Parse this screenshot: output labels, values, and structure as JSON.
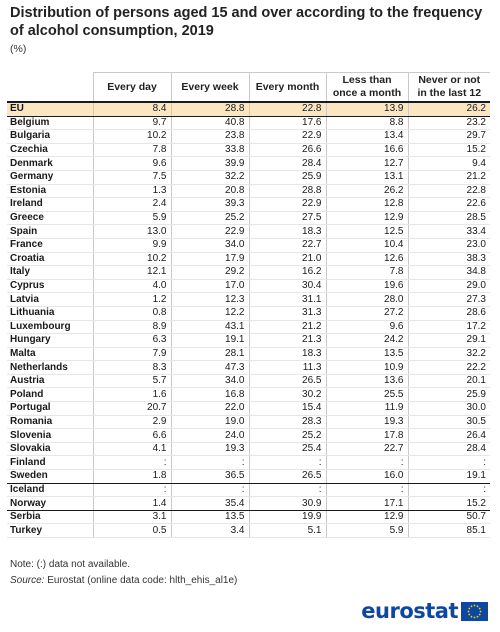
{
  "title": "Distribution of persons aged 15 and over according to the frequency of alcohol consumption, 2019",
  "unit": "(%)",
  "columns": [
    "Every day",
    "Every week",
    "Every month",
    "Less than once a month",
    "Never or not in the last 12"
  ],
  "rows": [
    {
      "label": "EU",
      "values": [
        "8.4",
        "28.8",
        "22.8",
        "13.9",
        "26.2"
      ]
    },
    {
      "label": "Belgium",
      "values": [
        "9.7",
        "40.8",
        "17.6",
        "8.8",
        "23.2"
      ]
    },
    {
      "label": "Bulgaria",
      "values": [
        "10.2",
        "23.8",
        "22.9",
        "13.4",
        "29.7"
      ]
    },
    {
      "label": "Czechia",
      "values": [
        "7.8",
        "33.8",
        "26.6",
        "16.6",
        "15.2"
      ]
    },
    {
      "label": "Denmark",
      "values": [
        "9.6",
        "39.9",
        "28.4",
        "12.7",
        "9.4"
      ]
    },
    {
      "label": "Germany",
      "values": [
        "7.5",
        "32.2",
        "25.9",
        "13.1",
        "21.2"
      ]
    },
    {
      "label": "Estonia",
      "values": [
        "1.3",
        "20.8",
        "28.8",
        "26.2",
        "22.8"
      ]
    },
    {
      "label": "Ireland",
      "values": [
        "2.4",
        "39.3",
        "22.9",
        "12.8",
        "22.6"
      ]
    },
    {
      "label": "Greece",
      "values": [
        "5.9",
        "25.2",
        "27.5",
        "12.9",
        "28.5"
      ]
    },
    {
      "label": "Spain",
      "values": [
        "13.0",
        "22.9",
        "18.3",
        "12.5",
        "33.4"
      ]
    },
    {
      "label": "France",
      "values": [
        "9.9",
        "34.0",
        "22.7",
        "10.4",
        "23.0"
      ]
    },
    {
      "label": "Croatia",
      "values": [
        "10.2",
        "17.9",
        "21.0",
        "12.6",
        "38.3"
      ]
    },
    {
      "label": "Italy",
      "values": [
        "12.1",
        "29.2",
        "16.2",
        "7.8",
        "34.8"
      ]
    },
    {
      "label": "Cyprus",
      "values": [
        "4.0",
        "17.0",
        "30.4",
        "19.6",
        "29.0"
      ]
    },
    {
      "label": "Latvia",
      "values": [
        "1.2",
        "12.3",
        "31.1",
        "28.0",
        "27.3"
      ]
    },
    {
      "label": "Lithuania",
      "values": [
        "0.8",
        "12.2",
        "31.3",
        "27.2",
        "28.6"
      ]
    },
    {
      "label": "Luxembourg",
      "values": [
        "8.9",
        "43.1",
        "21.2",
        "9.6",
        "17.2"
      ]
    },
    {
      "label": "Hungary",
      "values": [
        "6.3",
        "19.1",
        "21.3",
        "24.2",
        "29.1"
      ]
    },
    {
      "label": "Malta",
      "values": [
        "7.9",
        "28.1",
        "18.3",
        "13.5",
        "32.2"
      ]
    },
    {
      "label": "Netherlands",
      "values": [
        "8.3",
        "47.3",
        "11.3",
        "10.9",
        "22.2"
      ]
    },
    {
      "label": "Austria",
      "values": [
        "5.7",
        "34.0",
        "26.5",
        "13.6",
        "20.1"
      ]
    },
    {
      "label": "Poland",
      "values": [
        "1.6",
        "16.8",
        "30.2",
        "25.5",
        "25.9"
      ]
    },
    {
      "label": "Portugal",
      "values": [
        "20.7",
        "22.0",
        "15.4",
        "11.9",
        "30.0"
      ]
    },
    {
      "label": "Romania",
      "values": [
        "2.9",
        "19.0",
        "28.3",
        "19.3",
        "30.5"
      ]
    },
    {
      "label": "Slovenia",
      "values": [
        "6.6",
        "24.0",
        "25.2",
        "17.8",
        "26.4"
      ]
    },
    {
      "label": "Slovakia",
      "values": [
        "4.1",
        "19.3",
        "25.4",
        "22.7",
        "28.4"
      ]
    },
    {
      "label": "Finland",
      "values": [
        ":",
        ":",
        ":",
        ":",
        ":"
      ]
    },
    {
      "label": "Sweden",
      "values": [
        "1.8",
        "36.5",
        "26.5",
        "16.0",
        "19.1"
      ]
    },
    {
      "label": "Iceland",
      "values": [
        ":",
        ":",
        ":",
        ":",
        ":"
      ]
    },
    {
      "label": "Norway",
      "values": [
        "1.4",
        "35.4",
        "30.9",
        "17.1",
        "15.2"
      ]
    },
    {
      "label": "Serbia",
      "values": [
        "3.1",
        "13.5",
        "19.9",
        "12.9",
        "50.7"
      ]
    },
    {
      "label": "Turkey",
      "values": [
        "0.5",
        "3.4",
        "5.1",
        "5.9",
        "85.1"
      ]
    }
  ],
  "note": "Note: (:) data not available.",
  "source_label": "Source:",
  "source_text": "Eurostat (online data code: hlth_ehis_al1e)",
  "logo_text": "eurostat",
  "colors": {
    "eu_row_highlight": "#fbe6c0",
    "logo_blue": "#0e47a1",
    "logo_yellow": "#ffcc00"
  }
}
